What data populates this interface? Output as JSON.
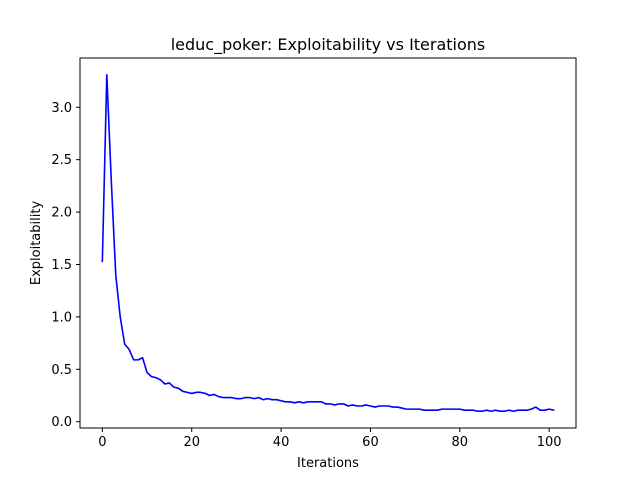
{
  "chart_data": {
    "type": "line",
    "title": "leduc_poker:  Exploitability vs Iterations",
    "xlabel": "Iterations",
    "ylabel": "Exploitability",
    "xlim": [
      -5,
      106
    ],
    "ylim": [
      -0.06,
      3.47
    ],
    "xticks": [
      0,
      20,
      40,
      60,
      80,
      100
    ],
    "yticks": [
      0.0,
      0.5,
      1.0,
      1.5,
      2.0,
      2.5,
      3.0
    ],
    "xtick_labels": [
      "0",
      "20",
      "40",
      "60",
      "80",
      "100"
    ],
    "ytick_labels": [
      "0.0",
      "0.5",
      "1.0",
      "1.5",
      "2.0",
      "2.5",
      "3.0"
    ],
    "grid": false,
    "line_color": "#0000ff",
    "series": [
      {
        "x": [
          0,
          1,
          2,
          3,
          4,
          5,
          6,
          7,
          8,
          9,
          10,
          11,
          12,
          13,
          14,
          15,
          16,
          17,
          18,
          19,
          20,
          21,
          22,
          23,
          24,
          25,
          26,
          27,
          28,
          29,
          30,
          31,
          32,
          33,
          34,
          35,
          36,
          37,
          38,
          39,
          40,
          41,
          42,
          43,
          44,
          45,
          46,
          47,
          48,
          49,
          50,
          51,
          52,
          53,
          54,
          55,
          56,
          57,
          58,
          59,
          60,
          61,
          62,
          63,
          64,
          65,
          66,
          67,
          68,
          69,
          70,
          71,
          72,
          73,
          74,
          75,
          76,
          77,
          78,
          79,
          80,
          81,
          82,
          83,
          84,
          85,
          86,
          87,
          88,
          89,
          90,
          91,
          92,
          93,
          94,
          95,
          96,
          97,
          98,
          99,
          100,
          101
        ],
        "y": [
          1.53,
          3.31,
          2.3,
          1.4,
          1.0,
          0.74,
          0.69,
          0.59,
          0.59,
          0.61,
          0.47,
          0.43,
          0.42,
          0.4,
          0.36,
          0.37,
          0.33,
          0.32,
          0.29,
          0.28,
          0.27,
          0.28,
          0.28,
          0.27,
          0.25,
          0.26,
          0.24,
          0.23,
          0.23,
          0.23,
          0.22,
          0.22,
          0.23,
          0.23,
          0.22,
          0.23,
          0.21,
          0.22,
          0.21,
          0.21,
          0.2,
          0.19,
          0.19,
          0.18,
          0.19,
          0.18,
          0.19,
          0.19,
          0.19,
          0.19,
          0.17,
          0.17,
          0.16,
          0.17,
          0.17,
          0.15,
          0.16,
          0.15,
          0.15,
          0.16,
          0.15,
          0.14,
          0.15,
          0.15,
          0.15,
          0.14,
          0.14,
          0.13,
          0.12,
          0.12,
          0.12,
          0.12,
          0.11,
          0.11,
          0.11,
          0.11,
          0.12,
          0.12,
          0.12,
          0.12,
          0.12,
          0.11,
          0.11,
          0.11,
          0.1,
          0.1,
          0.11,
          0.1,
          0.11,
          0.1,
          0.1,
          0.11,
          0.1,
          0.11,
          0.11,
          0.11,
          0.12,
          0.14,
          0.11,
          0.11,
          0.12,
          0.11
        ]
      }
    ]
  }
}
